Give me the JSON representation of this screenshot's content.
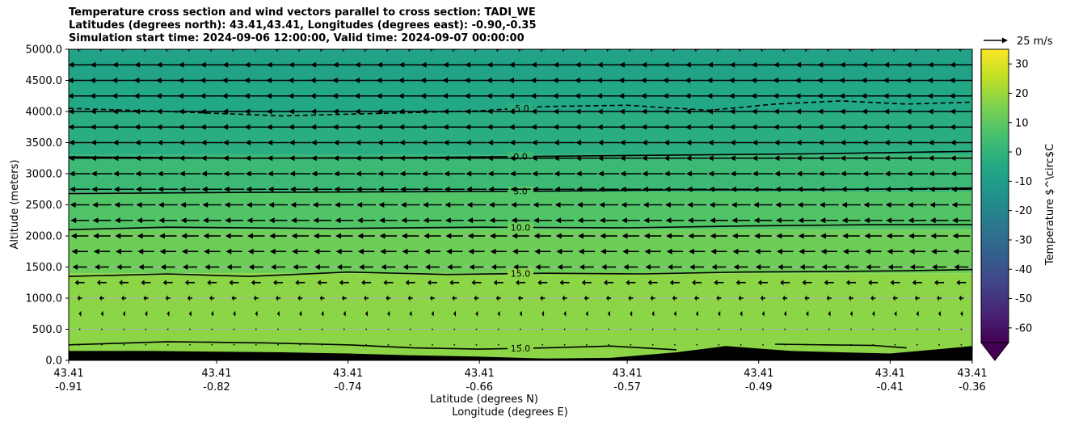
{
  "chart_data": {
    "type": "heatmap",
    "title_lines": [
      "Temperature cross section and wind vectors parallel to cross section: TADI_WE",
      "Latitudes (degrees north): 43.41,43.41, Longitudes (degrees east): -0.90,-0.35",
      "Simulation start time: 2024-09-06 12:00:00, Valid time: 2024-09-07 00:00:00"
    ],
    "ylabel": "Altitude (meters)",
    "xlabel_lat": "Latitude (degrees N)",
    "xlabel_lon": "Longitude (degrees E)",
    "ylim": [
      0,
      5000
    ],
    "y_ticks": [
      0,
      500,
      1000,
      1500,
      2000,
      2500,
      3000,
      3500,
      4000,
      4500,
      5000
    ],
    "y_tick_labels": [
      "0.0",
      "500.0",
      "1000.0",
      "1500.0",
      "2000.0",
      "2500.0",
      "3000.0",
      "3500.0",
      "4000.0",
      "4500.0",
      "5000.0"
    ],
    "xlim": [
      -0.91,
      -0.36
    ],
    "x_ticks": [
      {
        "lat": "43.41",
        "lon": "-0.91",
        "x": -0.91
      },
      {
        "lat": "43.41",
        "lon": "-0.82",
        "x": -0.82
      },
      {
        "lat": "43.41",
        "lon": "-0.74",
        "x": -0.74
      },
      {
        "lat": "43.41",
        "lon": "-0.66",
        "x": -0.66
      },
      {
        "lat": "43.41",
        "lon": "-0.57",
        "x": -0.57
      },
      {
        "lat": "43.41",
        "lon": "-0.49",
        "x": -0.49
      },
      {
        "lat": "43.41",
        "lon": "-0.41",
        "x": -0.41
      },
      {
        "lat": "43.41",
        "lon": "-0.36",
        "x": -0.36
      }
    ],
    "grid": "horizontal",
    "colormap": "viridis",
    "colorbar": {
      "label": "Temperature $^\\circ$C",
      "range": [
        -65,
        35
      ],
      "ticks": [
        30,
        20,
        10,
        0,
        -10,
        -20,
        -30,
        -40,
        -50,
        -60
      ],
      "extend": "min"
    },
    "temperature_bands": [
      {
        "from_m": 4500,
        "to_m": 5000,
        "temp_c": -7.5
      },
      {
        "from_m": 4000,
        "to_m": 4500,
        "temp_c": -5
      },
      {
        "from_m": 3300,
        "to_m": 4000,
        "temp_c": -2.5
      },
      {
        "from_m": 2700,
        "to_m": 3300,
        "temp_c": 2.5
      },
      {
        "from_m": 2100,
        "to_m": 2700,
        "temp_c": 7.5
      },
      {
        "from_m": 1400,
        "to_m": 2100,
        "temp_c": 12.5
      },
      {
        "from_m": 0,
        "to_m": 1400,
        "temp_c": 17.5
      }
    ],
    "contours": [
      {
        "level": -5,
        "label": "-5.0",
        "style": "dashed",
        "x": [
          -0.91,
          -0.85,
          -0.78,
          -0.72,
          -0.66,
          -0.62,
          -0.57,
          -0.52,
          -0.48,
          -0.44,
          -0.4,
          -0.36
        ],
        "y": [
          4050,
          4000,
          3930,
          3970,
          4010,
          4080,
          4100,
          4020,
          4120,
          4170,
          4120,
          4150
        ]
      },
      {
        "level": 0,
        "label": "0.0",
        "style": "solid",
        "x": [
          -0.91,
          -0.8,
          -0.7,
          -0.62,
          -0.54,
          -0.46,
          -0.36
        ],
        "y": [
          3270,
          3250,
          3260,
          3280,
          3300,
          3320,
          3360
        ]
      },
      {
        "level": 5,
        "label": "5.0",
        "style": "solid",
        "x": [
          -0.91,
          -0.8,
          -0.7,
          -0.62,
          -0.54,
          -0.46,
          -0.36
        ],
        "y": [
          2680,
          2700,
          2710,
          2720,
          2740,
          2740,
          2770
        ]
      },
      {
        "level": 10,
        "label": "10.0",
        "style": "solid",
        "x": [
          -0.91,
          -0.85,
          -0.75,
          -0.66,
          -0.57,
          -0.5,
          -0.42,
          -0.36
        ],
        "y": [
          2100,
          2140,
          2120,
          2140,
          2130,
          2160,
          2180,
          2180
        ]
      },
      {
        "level": 15,
        "label": "15.0",
        "style": "solid",
        "x": [
          -0.91,
          -0.85,
          -0.8,
          -0.74,
          -0.68,
          -0.62,
          -0.56,
          -0.5,
          -0.44,
          -0.4,
          -0.36
        ],
        "y": [
          1350,
          1390,
          1350,
          1420,
          1380,
          1400,
          1390,
          1420,
          1430,
          1440,
          1460
        ]
      },
      {
        "level": 15,
        "label": "15.0",
        "style": "solid",
        "x": [
          -0.91,
          -0.85,
          -0.79,
          -0.74,
          -0.7,
          -0.66,
          -0.62,
          -0.58,
          -0.54
        ],
        "y": [
          250,
          300,
          280,
          250,
          200,
          180,
          200,
          230,
          170
        ]
      },
      {
        "level": 15,
        "label": "",
        "style": "solid",
        "x": [
          -0.48,
          -0.45,
          -0.42,
          -0.4
        ],
        "y": [
          260,
          250,
          240,
          200
        ]
      }
    ],
    "terrain": {
      "x": [
        -0.91,
        -0.86,
        -0.82,
        -0.78,
        -0.74,
        -0.7,
        -0.66,
        -0.62,
        -0.58,
        -0.54,
        -0.51,
        -0.49,
        -0.47,
        -0.44,
        -0.41,
        -0.38,
        -0.36
      ],
      "y": [
        150,
        150,
        140,
        130,
        110,
        80,
        60,
        30,
        40,
        130,
        230,
        190,
        150,
        130,
        110,
        180,
        230
      ]
    },
    "wind": {
      "reference_label": "25 m/s",
      "reference_speed_ms": 25,
      "direction": "westward",
      "rows": [
        {
          "z": 5000,
          "speed_ms": 6
        },
        {
          "z": 4750,
          "speed_ms": 24
        },
        {
          "z": 4500,
          "speed_ms": 25
        },
        {
          "z": 4250,
          "speed_ms": 25
        },
        {
          "z": 4000,
          "speed_ms": 24
        },
        {
          "z": 3750,
          "speed_ms": 24
        },
        {
          "z": 3500,
          "speed_ms": 23
        },
        {
          "z": 3250,
          "speed_ms": 23
        },
        {
          "z": 3000,
          "speed_ms": 22
        },
        {
          "z": 2750,
          "speed_ms": 21
        },
        {
          "z": 2500,
          "speed_ms": 20
        },
        {
          "z": 2250,
          "speed_ms": 19
        },
        {
          "z": 2000,
          "speed_ms": 18
        },
        {
          "z": 1750,
          "speed_ms": 17
        },
        {
          "z": 1500,
          "speed_ms": 15
        },
        {
          "z": 1250,
          "speed_ms": 10
        },
        {
          "z": 1000,
          "speed_ms": 5
        },
        {
          "z": 750,
          "speed_ms": 2
        },
        {
          "z": 500,
          "speed_ms": 1
        },
        {
          "z": 250,
          "speed_ms": 1
        }
      ],
      "columns": 41
    }
  }
}
